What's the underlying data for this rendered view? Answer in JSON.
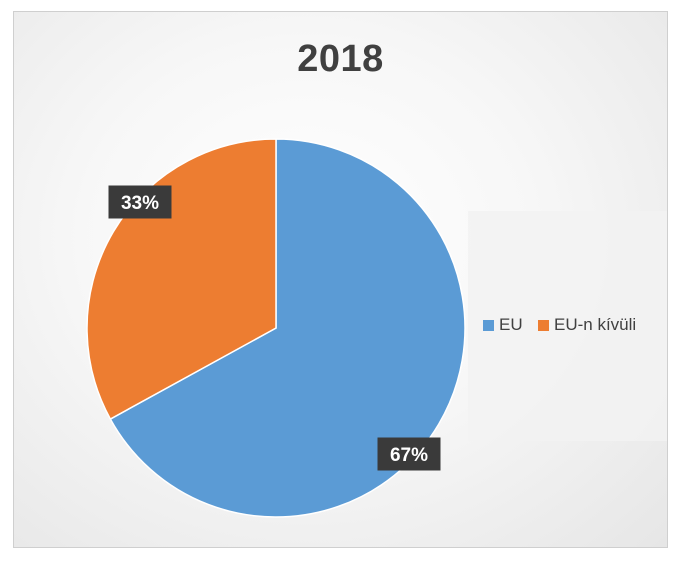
{
  "chart_data": {
    "type": "pie",
    "title": "2018",
    "categories": [
      "EU",
      "EU-n kívüli"
    ],
    "values": [
      67,
      33
    ],
    "labels": [
      "67%",
      "33%"
    ],
    "colors": [
      "#5b9bd5",
      "#ed7d31"
    ],
    "legend_position": "right",
    "start_angle": "12 o'clock",
    "direction": "clockwise"
  }
}
